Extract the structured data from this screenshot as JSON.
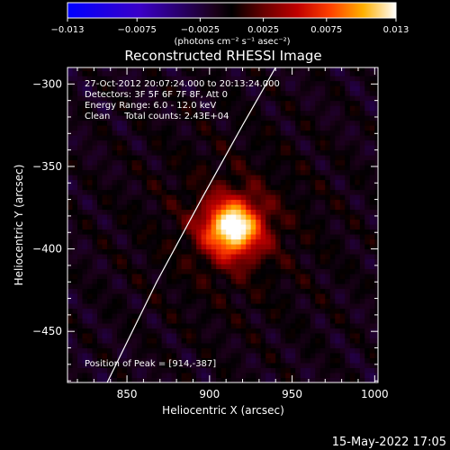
{
  "chart_data": {
    "type": "heatmap",
    "title": "Reconstructed RHESSI Image",
    "xlabel": "Heliocentric X (arcsec)",
    "ylabel": "Heliocentric Y (arcsec)",
    "xlim": [
      814,
      1002
    ],
    "ylim": [
      -481,
      -290
    ],
    "x_ticks": [
      850,
      900,
      950,
      1000
    ],
    "x_tick_labels": [
      "850",
      "900",
      "950",
      "1000"
    ],
    "y_ticks": [
      -300,
      -350,
      -400,
      -450
    ],
    "y_tick_labels": [
      "−300",
      "−350",
      "−400",
      "−450"
    ],
    "colorbar": {
      "range": [
        -0.013,
        0.013
      ],
      "ticks": [
        -0.013,
        -0.0075,
        -0.0025,
        0.0025,
        0.0075,
        0.013
      ],
      "tick_labels": [
        "−0.013",
        "−0.0075",
        "−0.0025",
        "0.0025",
        "0.0075",
        "0.013"
      ],
      "units_label": "(photons cm⁻² s⁻¹ asec⁻²)"
    },
    "annotations": {
      "time": "27-Oct-2012 20:07:24.000 to 20:13:24.000",
      "detectors": "Detectors: 3F 5F 6F 7F 8F, Att 0",
      "energy": "Energy Range: 6.0 - 12.0 keV",
      "clean": "Clean     Total counts: 2.43E+04",
      "peak": "Position of Peak = [914,-387]"
    },
    "peak": [
      914,
      -387
    ],
    "peak_value": 0.013,
    "source_sigma_arcsec": 12,
    "limb_points": [
      [
        838,
        -481
      ],
      [
        868,
        -420
      ],
      [
        895,
        -370
      ],
      [
        920,
        -325
      ],
      [
        940,
        -290
      ]
    ],
    "colors": {
      "limb": "#ffffff",
      "background": "#000000"
    }
  },
  "footer": {
    "date": "15-May-2022 17:05"
  }
}
